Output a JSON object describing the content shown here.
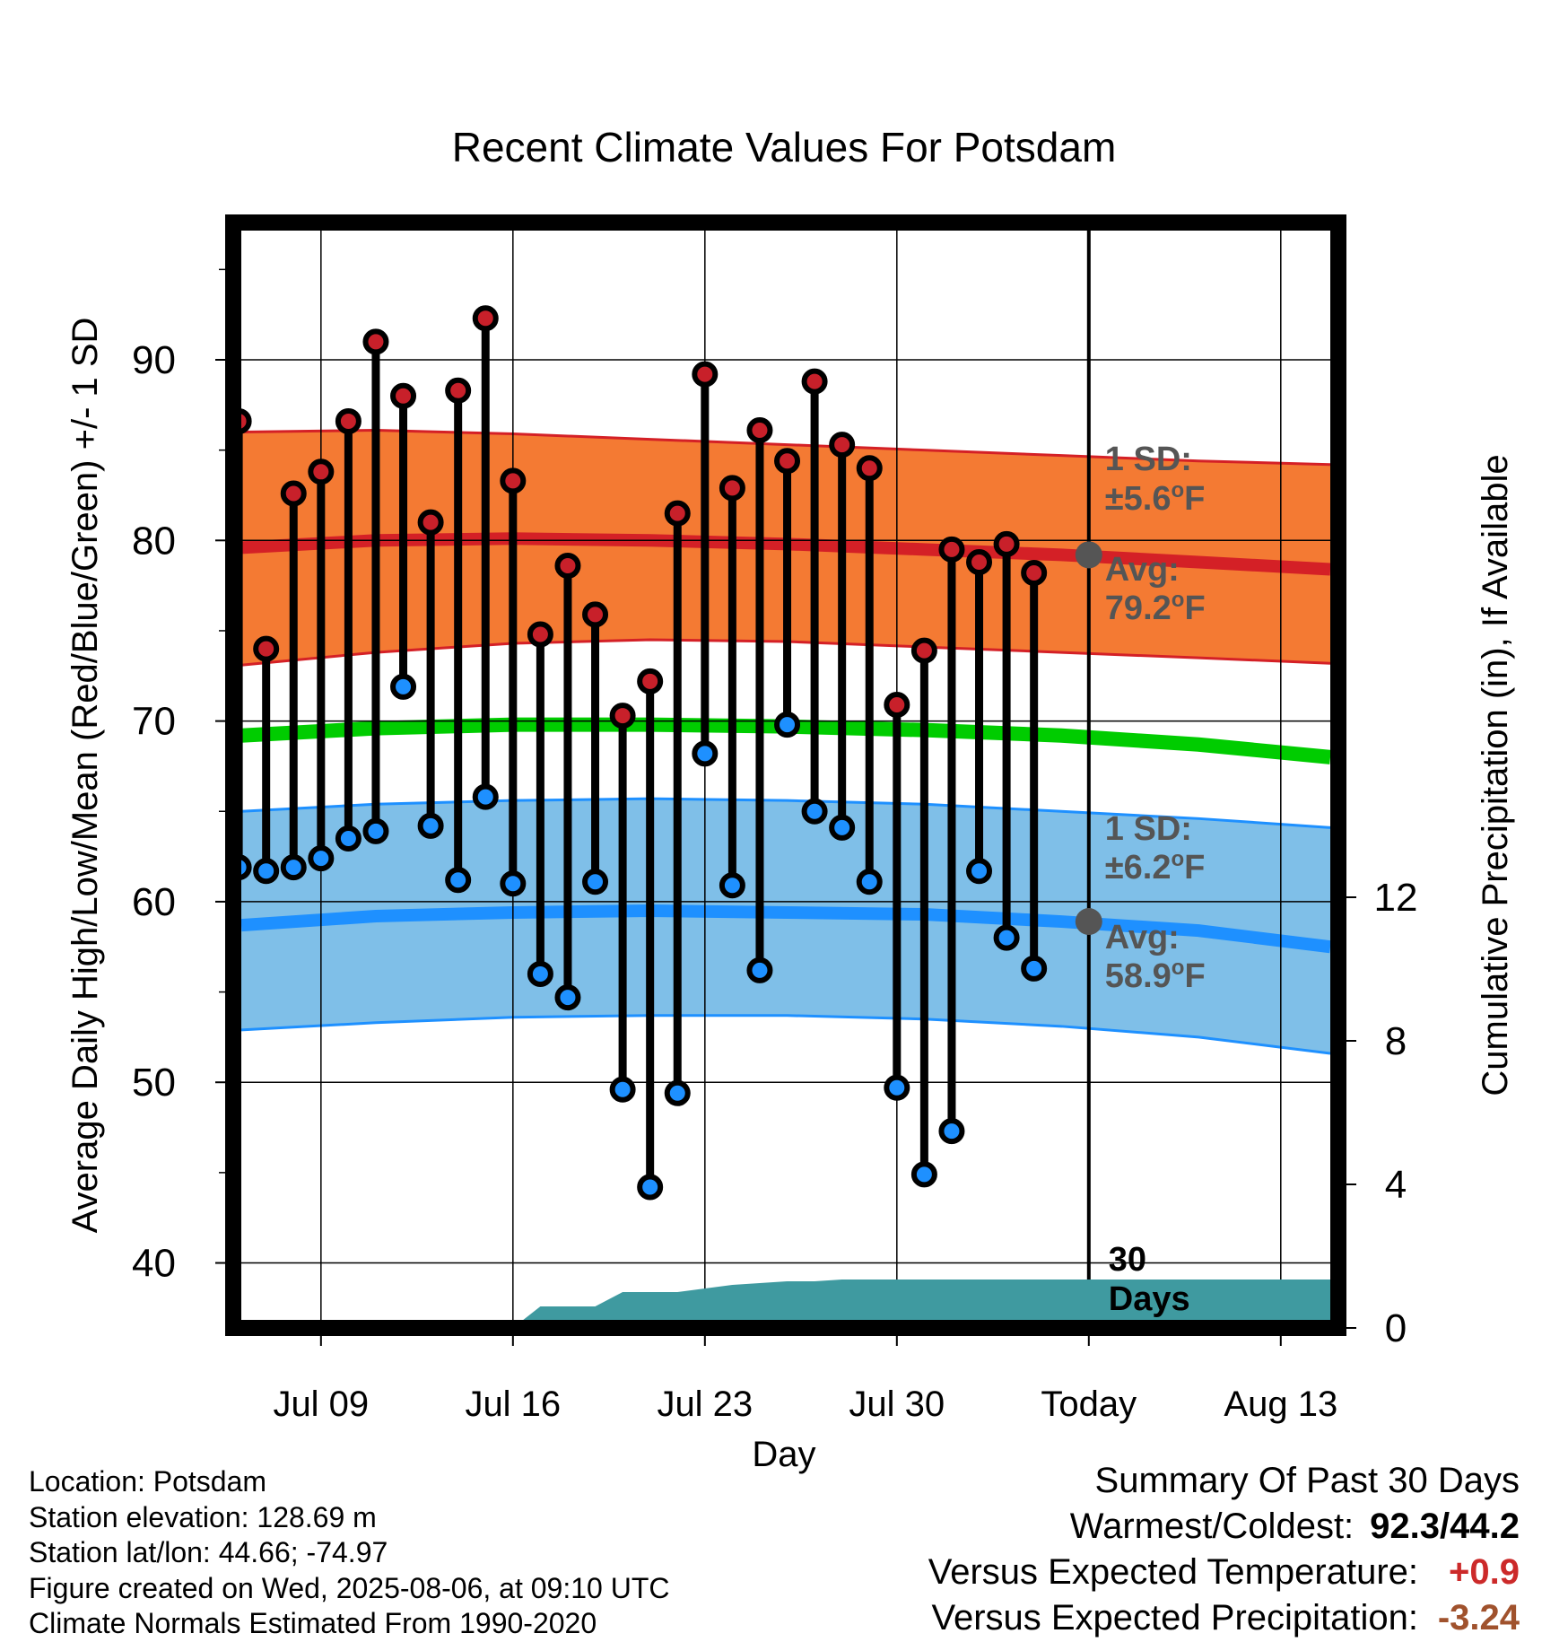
{
  "chart_data": {
    "type": "line",
    "title": "Recent Climate Values For Potsdam",
    "xlabel": "Day",
    "ylabel_left": "Average Daily High/Low/Mean (Red/Blue/Green) +/- 1 SD",
    "ylabel_right": "Cumulative Precipitation (in), If Available",
    "x_tick_labels": [
      "Jul 09",
      "Jul 16",
      "Jul 23",
      "Jul 30",
      "Today",
      "Aug 13"
    ],
    "x_tick_days": [
      9,
      16,
      23,
      30,
      37,
      44
    ],
    "xlim": [
      5.8,
      46.1
    ],
    "ylim": [
      36.4,
      97.6
    ],
    "y_ticks": [
      40,
      50,
      60,
      70,
      80,
      90
    ],
    "precip_ylim": [
      0,
      30.8
    ],
    "precip_ticks": [
      0,
      4,
      8,
      12
    ],
    "today_day": 37,
    "days": [
      6,
      7,
      8,
      9,
      10,
      11,
      12,
      13,
      14,
      15,
      16,
      17,
      18,
      19,
      20,
      21,
      22,
      23,
      24,
      25,
      26,
      27,
      28,
      29,
      30,
      31,
      32,
      33,
      34,
      35,
      36
    ],
    "highs": [
      86.6,
      74.0,
      82.6,
      83.8,
      86.6,
      91.0,
      88.0,
      81.0,
      88.3,
      92.3,
      83.3,
      74.8,
      78.6,
      75.9,
      70.3,
      72.2,
      81.5,
      89.2,
      82.9,
      86.1,
      84.4,
      88.8,
      85.3,
      84.0,
      70.9,
      73.9,
      79.5,
      78.8,
      79.8,
      78.2,
      null
    ],
    "lows": [
      61.9,
      61.7,
      61.9,
      62.4,
      63.5,
      63.9,
      71.9,
      64.2,
      61.2,
      65.8,
      61.0,
      56.0,
      54.7,
      61.1,
      49.6,
      44.2,
      49.4,
      68.2,
      60.9,
      56.2,
      69.8,
      65.0,
      64.1,
      61.1,
      49.7,
      44.9,
      47.3,
      61.7,
      58.0,
      56.3,
      null
    ],
    "normals_days": [
      6,
      11,
      16,
      21,
      26,
      31,
      36,
      41,
      46
    ],
    "normal_high": [
      79.6,
      80.0,
      80.1,
      80.0,
      79.8,
      79.5,
      79.2,
      78.8,
      78.4
    ],
    "normal_high_plus_sd": [
      86.0,
      86.1,
      85.9,
      85.6,
      85.3,
      85.0,
      84.7,
      84.4,
      84.2
    ],
    "normal_high_minus_sd": [
      73.1,
      73.8,
      74.3,
      74.5,
      74.4,
      74.1,
      73.8,
      73.5,
      73.2
    ],
    "normal_mean": [
      69.2,
      69.6,
      69.8,
      69.8,
      69.7,
      69.5,
      69.2,
      68.7,
      68.0
    ],
    "normal_low": [
      58.7,
      59.2,
      59.4,
      59.5,
      59.4,
      59.3,
      58.9,
      58.4,
      57.5
    ],
    "normal_low_plus_sd": [
      65.0,
      65.4,
      65.6,
      65.7,
      65.6,
      65.4,
      65.0,
      64.6,
      64.1
    ],
    "normal_low_minus_sd": [
      52.9,
      53.3,
      53.6,
      53.7,
      53.7,
      53.5,
      53.1,
      52.5,
      51.6
    ],
    "precip_days": [
      6,
      16,
      17,
      18,
      19,
      20,
      21,
      22,
      23,
      24,
      25,
      26,
      27,
      28,
      29,
      30,
      31,
      32,
      33,
      34,
      35,
      36,
      37,
      38,
      39,
      40,
      41,
      42,
      43,
      44,
      45,
      46
    ],
    "precip_cumulative": [
      0,
      0,
      0.6,
      0.6,
      0.6,
      1.0,
      1.0,
      1.0,
      1.1,
      1.2,
      1.25,
      1.3,
      1.3,
      1.35,
      1.35,
      1.35,
      1.35,
      1.35,
      1.35,
      1.35,
      1.35,
      1.35,
      1.35,
      1.35,
      1.35,
      1.35,
      1.35,
      1.35,
      1.35,
      1.35,
      1.35,
      1.35
    ],
    "high_annotation": {
      "sd_label": "1 SD:",
      "sd_value": "±5.6",
      "avg_label": "Avg:",
      "avg_value": "79.2",
      "unit": "F",
      "degree": "o"
    },
    "low_annotation": {
      "sd_label": "1 SD:",
      "sd_value": "±6.2",
      "avg_label": "Avg:",
      "avg_value": "58.9",
      "unit": "F",
      "degree": "o"
    },
    "window_label_line1": "30",
    "window_label_line2": "Days",
    "colors": {
      "high_band": "#f47a33",
      "high_line": "#d42026",
      "low_band": "#7fbfe8",
      "low_line": "#1e90ff",
      "mean_line": "#00cc00",
      "precip": "#3f9aa0",
      "high_dot": "#c8202a",
      "low_dot": "#1e90ff",
      "annotation": "#555555"
    }
  },
  "info": {
    "location": "Location: Potsdam",
    "elevation": "Station elevation: 128.69 m",
    "latlon": "Station lat/lon: 44.66; -74.97",
    "created": "Figure created on Wed, 2025-08-06, at 09:10 UTC",
    "normals": "Climate Normals Estimated From 1990-2020"
  },
  "summary": {
    "title": "Summary Of Past 30 Days",
    "warm_cold_label": "Warmest/Coldest:",
    "warm_cold_value": "92.3/44.2",
    "temp_label": "Versus Expected Temperature:",
    "temp_value": "+0.9",
    "temp_color": "#cc2a2a",
    "precip_label": "Versus Expected Precipitation:",
    "precip_value": "-3.24",
    "precip_color": "#a0522d"
  }
}
